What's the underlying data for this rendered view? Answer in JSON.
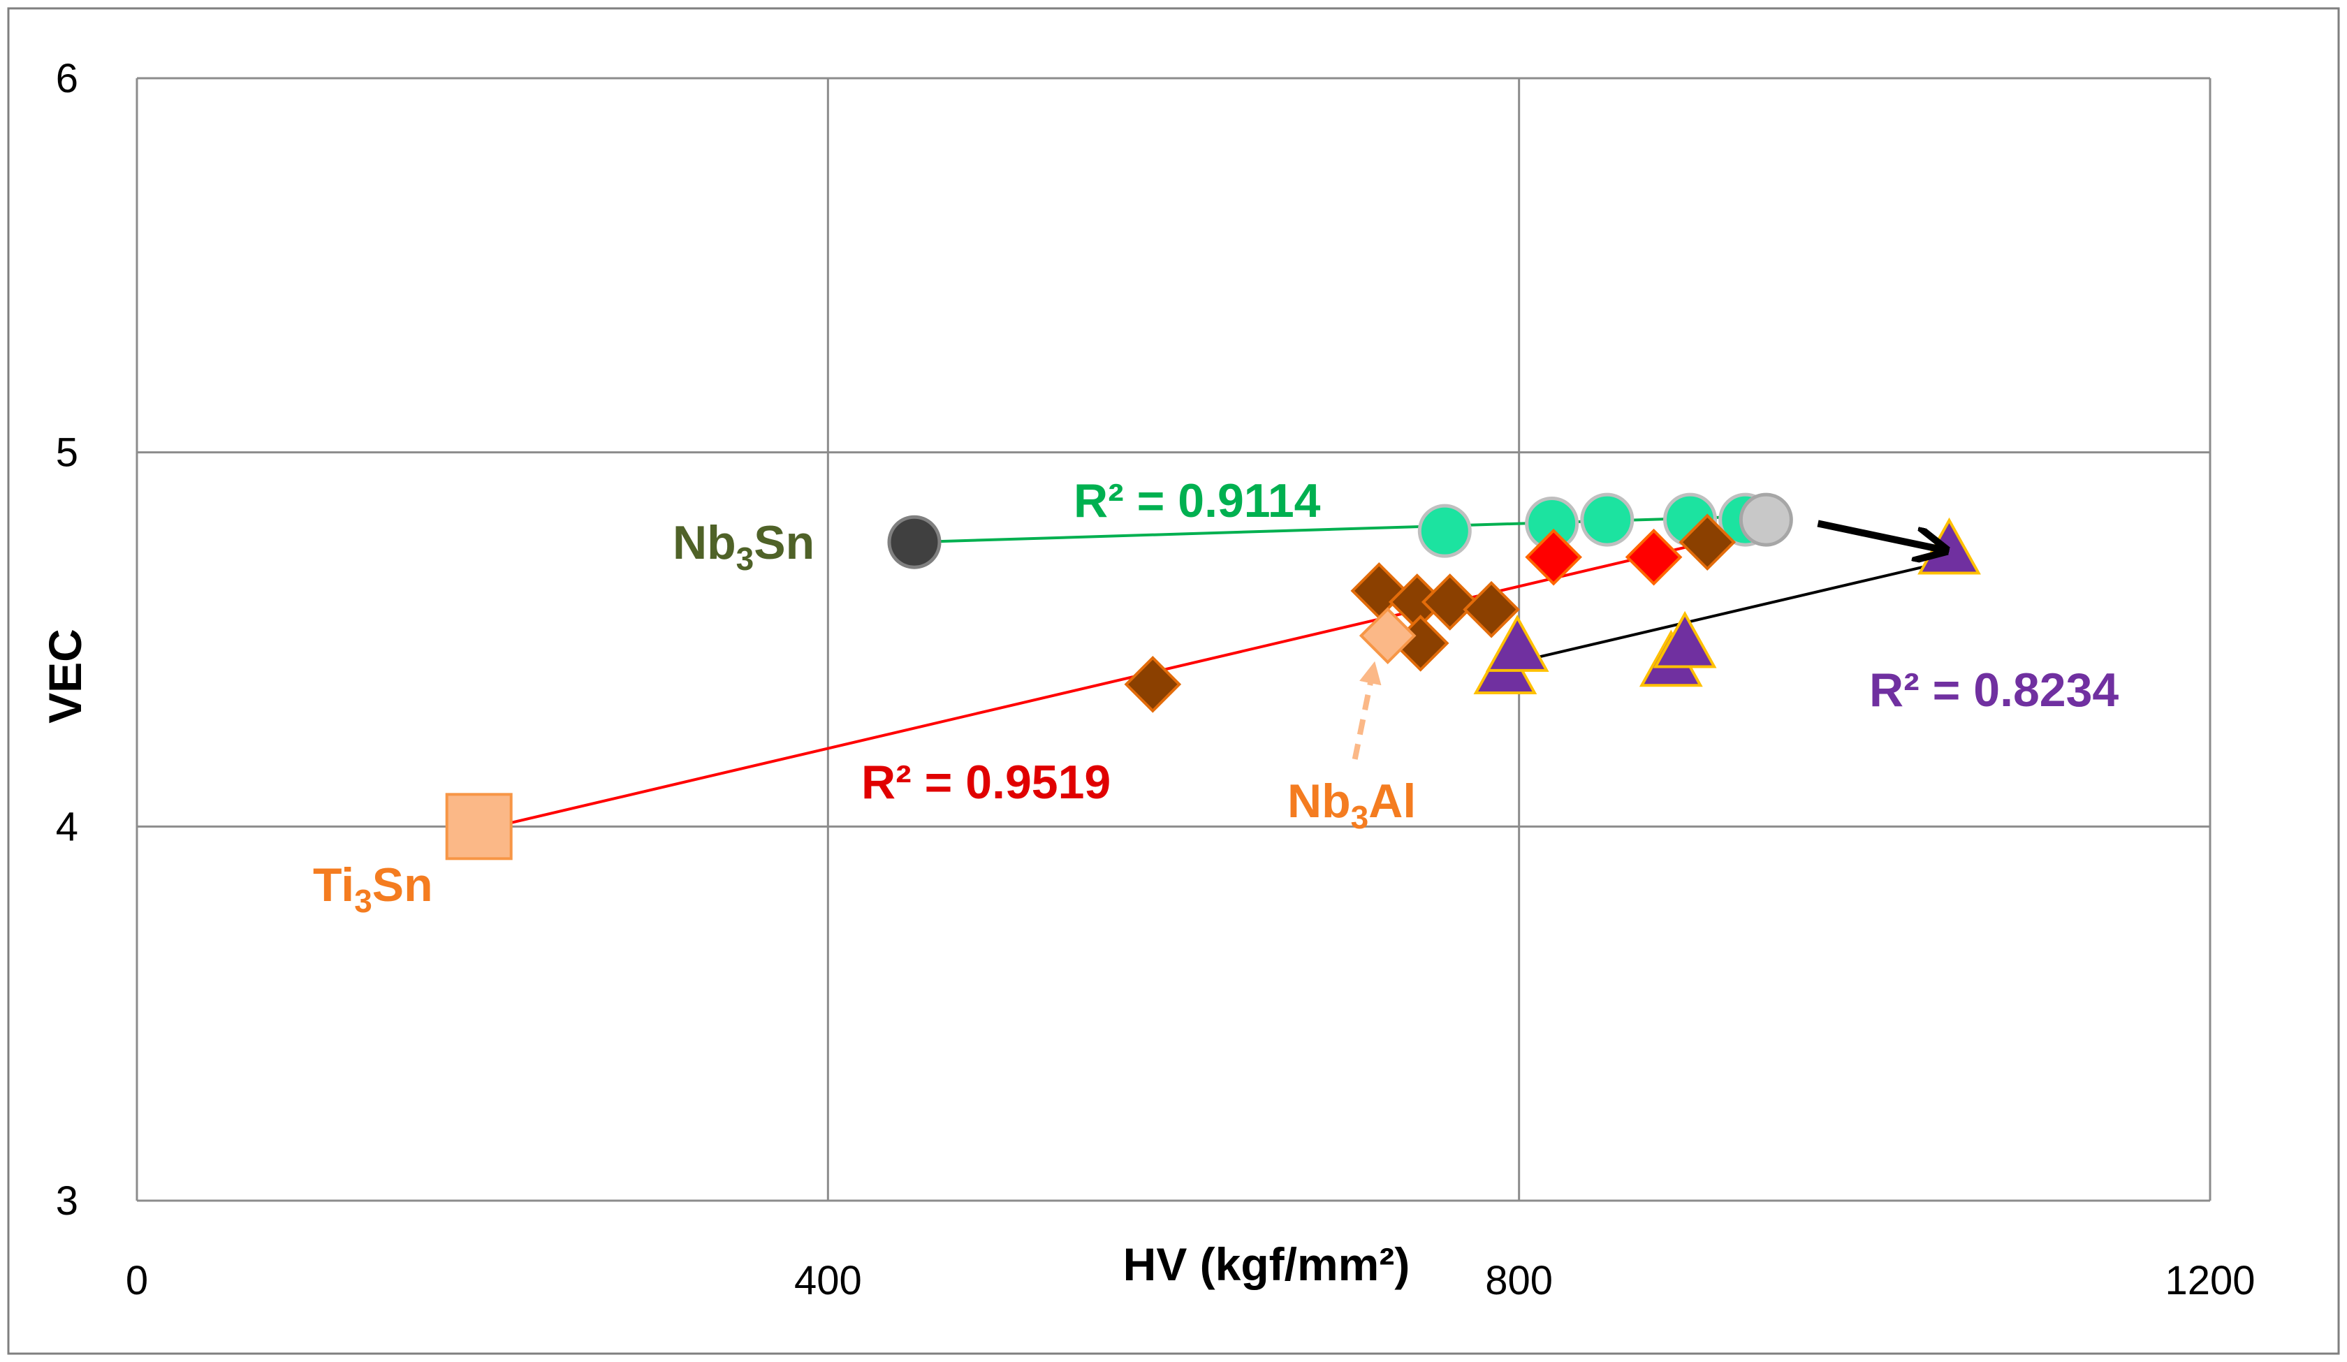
{
  "chart_data": {
    "type": "scatter",
    "title": "",
    "xlabel": "HV (kgf/mm²)",
    "ylabel": "VEC",
    "xlim": [
      0,
      1200
    ],
    "ylim": [
      3,
      6
    ],
    "xticks": [
      "0",
      "400",
      "800",
      "1200"
    ],
    "xtick_values": [
      0,
      400,
      800,
      1200
    ],
    "yticks": [
      "3",
      "4",
      "5",
      "6"
    ],
    "ytick_values": [
      3,
      4,
      5,
      6
    ],
    "grid": true,
    "series": [
      {
        "name": "Nb3Sn reference",
        "marker": "circle",
        "color": "#404040",
        "edge": "#808080",
        "points": [
          [
            450,
            4.76
          ]
        ]
      },
      {
        "name": "green circles",
        "marker": "circle",
        "color": "#1CE3A0",
        "edge": "#BFBFBF",
        "points": [
          [
            757,
            4.79
          ],
          [
            819,
            4.81
          ],
          [
            851,
            4.82
          ],
          [
            899,
            4.82
          ],
          [
            931,
            4.82
          ]
        ]
      },
      {
        "name": "gray circle",
        "marker": "circle",
        "color": "#C8C8C8",
        "edge": "#A6A6A6",
        "points": [
          [
            943,
            4.82
          ]
        ]
      },
      {
        "name": "brown diamonds",
        "marker": "diamond",
        "color": "#8B4000",
        "edge": "#E36C0A",
        "points": [
          [
            588,
            4.38
          ],
          [
            719,
            4.63
          ],
          [
            741,
            4.6
          ],
          [
            743,
            4.49
          ],
          [
            760,
            4.6
          ],
          [
            784,
            4.58
          ],
          [
            909,
            4.76
          ]
        ]
      },
      {
        "name": "red diamonds",
        "marker": "diamond",
        "color": "#FF0000",
        "edge": "#FF6600",
        "points": [
          [
            820,
            4.72
          ],
          [
            878,
            4.72
          ]
        ]
      },
      {
        "name": "Nb3Al reference",
        "marker": "diamond",
        "color": "#FBB887",
        "edge": "#F79646",
        "points": [
          [
            724,
            4.51
          ]
        ]
      },
      {
        "name": "Ti3Sn reference",
        "marker": "square",
        "color": "#FBB887",
        "edge": "#F79646",
        "points": [
          [
            198,
            4.0
          ]
        ]
      },
      {
        "name": "purple triangles",
        "marker": "triangle",
        "color": "#7030A0",
        "edge": "#FFC000",
        "points": [
          [
            792,
            4.42
          ],
          [
            799,
            4.48
          ],
          [
            888,
            4.44
          ],
          [
            896,
            4.49
          ],
          [
            1049,
            4.74
          ]
        ]
      }
    ],
    "trendlines": [
      {
        "name": "green fit",
        "color": "#00B050",
        "from": [
          450,
          4.76
        ],
        "to": [
          943,
          4.83
        ],
        "r2": "R² = 0.9114"
      },
      {
        "name": "red fit",
        "color": "#FF0000",
        "from": [
          198,
          3.99
        ],
        "to": [
          909,
          4.76
        ],
        "r2": "R² = 0.9519"
      },
      {
        "name": "black fit",
        "color": "#000000",
        "from": [
          790,
          4.43
        ],
        "to": [
          1049,
          4.71
        ],
        "r2": "R² = 0.8234"
      }
    ],
    "annotations": {
      "r2_green": {
        "text": "R² = 0.9114",
        "color": "#00B050"
      },
      "r2_red": {
        "text": "R² = 0.9519",
        "color": "#E00000"
      },
      "r2_purple": {
        "text": "R² = 0.8234",
        "color": "#7030A0"
      },
      "nb3sn": {
        "base": "Nb",
        "sub": "3",
        "rest": "Sn",
        "color": "#4F6228"
      },
      "nb3al": {
        "base": "Nb",
        "sub": "3",
        "rest": "Al",
        "color": "#F47C20"
      },
      "ti3sn": {
        "base": "Ti",
        "sub": "3",
        "rest": "Sn",
        "color": "#F47C20"
      }
    },
    "arrows": [
      {
        "name": "black arrow",
        "color": "#000000",
        "style": "solid",
        "from": [
          973,
          4.81
        ],
        "to": [
          1045,
          4.74
        ]
      },
      {
        "name": "nb3al arrow",
        "color": "#FBB887",
        "style": "dashed",
        "from": [
          705,
          4.18
        ],
        "to": [
          716,
          4.43
        ]
      }
    ]
  }
}
